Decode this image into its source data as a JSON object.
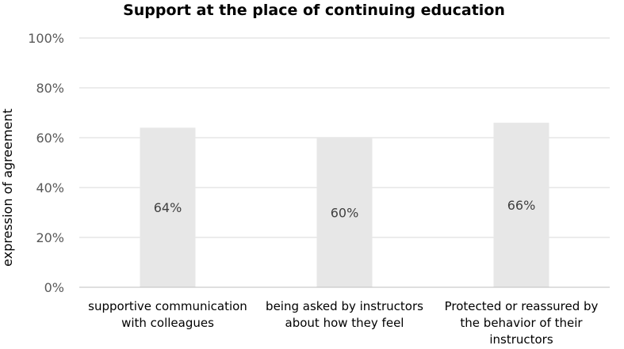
{
  "chart_data": {
    "type": "bar",
    "title": "Support at the place of continuing education",
    "xlabel": "",
    "ylabel": "expression of agreement",
    "ylim": [
      0,
      100
    ],
    "yticks": [
      "0%",
      "20%",
      "40%",
      "60%",
      "80%",
      "100%"
    ],
    "categories": [
      [
        "supportive communication",
        "with colleagues"
      ],
      [
        "being asked by instructors",
        "about how they feel"
      ],
      [
        "Protected or reassured by",
        "the behavior of their",
        "instructors"
      ]
    ],
    "values": [
      64,
      60,
      66
    ],
    "data_labels": [
      "64%",
      "60%",
      "66%"
    ],
    "bar_color": "#e7e7e7",
    "grid": true,
    "legend": "none"
  }
}
